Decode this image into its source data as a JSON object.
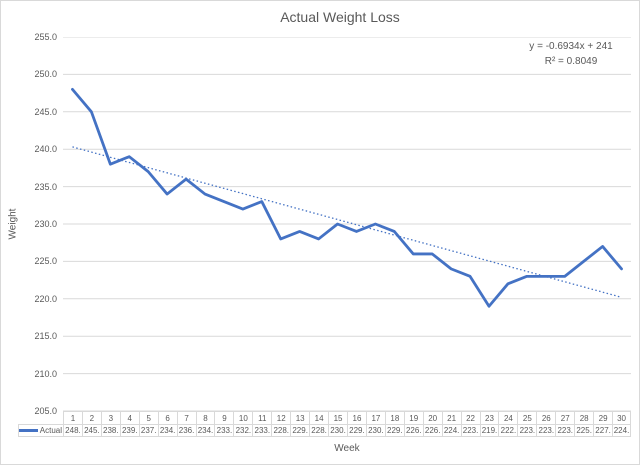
{
  "chart_title": "Actual Weight Loss",
  "trendline_annotation": {
    "line1": "y = -0.6934x + 241",
    "line2": "R² = 0.8049"
  },
  "axes": {
    "x_title": "Week",
    "y_title": "Weight"
  },
  "legend": {
    "series_label": "Actual"
  },
  "colors": {
    "series_line": "#4472c4",
    "trendline": "#4472c4",
    "gridline": "#d9d9d9",
    "axis_text": "#595959",
    "chart_border": "#d9d9d9"
  },
  "chart_data": {
    "type": "line",
    "title": "Actual Weight Loss",
    "xlabel": "Week",
    "ylabel": "Weight",
    "ylim": [
      205.0,
      255.0
    ],
    "ytick_step": 5.0,
    "ytick_labels": [
      "205.0",
      "210.0",
      "215.0",
      "220.0",
      "225.0",
      "230.0",
      "235.0",
      "240.0",
      "245.0",
      "250.0",
      "255.0"
    ],
    "grid": true,
    "legend_position": "data-table-left",
    "categories": [
      1,
      2,
      3,
      4,
      5,
      6,
      7,
      8,
      9,
      10,
      11,
      12,
      13,
      14,
      15,
      16,
      17,
      18,
      19,
      20,
      21,
      22,
      23,
      24,
      25,
      26,
      27,
      28,
      29,
      30
    ],
    "series": [
      {
        "name": "Actual",
        "values": [
          248,
          245,
          238,
          239,
          237,
          234,
          236,
          234,
          233,
          232,
          233,
          228,
          229,
          228,
          230,
          229,
          230,
          229,
          226,
          226,
          224,
          223,
          219,
          222,
          223,
          223,
          223,
          225,
          227,
          224
        ]
      }
    ],
    "data_table_display": [
      "248.",
      "245.",
      "238.",
      "239.",
      "237.",
      "234.",
      "236.",
      "234.",
      "233.",
      "232.",
      "233.",
      "228.",
      "229.",
      "228.",
      "230.",
      "229.",
      "230.",
      "229.",
      "226.",
      "226.",
      "224.",
      "223.",
      "219.",
      "222.",
      "223.",
      "223.",
      "223.",
      "225.",
      "227.",
      "224."
    ],
    "trendline": {
      "slope": -0.6934,
      "intercept": 241,
      "equation": "y = -0.6934x + 241",
      "r_squared": 0.8049,
      "style": "dotted"
    }
  }
}
